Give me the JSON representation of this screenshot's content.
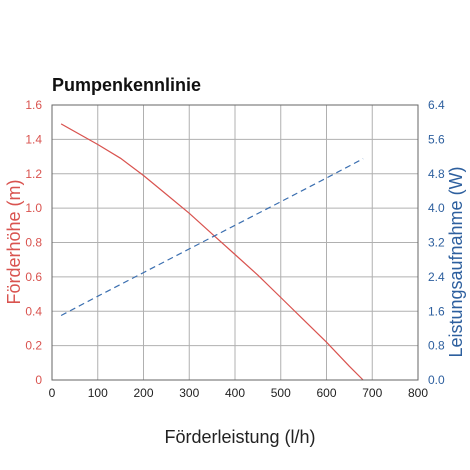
{
  "chart_data": {
    "type": "line",
    "title": "Pumpenkennlinie",
    "xlabel": "Förderleistung (l/h)",
    "ylabel_left": "Förderhöhe (m)",
    "ylabel_right": "Leistungsaufnahme (W)",
    "xlim": [
      0,
      800
    ],
    "ylim_left": [
      0,
      1.6
    ],
    "ylim_right": [
      0,
      6.4
    ],
    "x_ticks": [
      "0",
      "100",
      "200",
      "300",
      "400",
      "500",
      "600",
      "700",
      "800"
    ],
    "y_left_ticks": [
      "0",
      "0.2",
      "0.4",
      "0.6",
      "0.8",
      "1.0",
      "1.2",
      "1.4",
      "1.6"
    ],
    "y_right_ticks": [
      "0.0",
      "0.8",
      "1.6",
      "2.4",
      "3.2",
      "4.0",
      "4.8",
      "5.6",
      "6.4"
    ],
    "grid": true,
    "series": [
      {
        "axis": "left",
        "style": "solid",
        "color": "#d9534f",
        "x": [
          20,
          100,
          150,
          200,
          250,
          300,
          350,
          400,
          450,
          500,
          550,
          600,
          650,
          680
        ],
        "y": [
          1.49,
          1.37,
          1.29,
          1.19,
          1.08,
          0.97,
          0.85,
          0.73,
          0.61,
          0.48,
          0.35,
          0.22,
          0.08,
          0.0
        ]
      },
      {
        "axis": "right",
        "style": "dashed",
        "color": "#3b6fb0",
        "x": [
          20,
          100,
          200,
          300,
          400,
          500,
          600,
          680
        ],
        "y": [
          1.5,
          1.95,
          2.5,
          3.05,
          3.6,
          4.15,
          4.7,
          5.15
        ]
      }
    ],
    "colors": {
      "left_axis": "#d9534f",
      "right_axis": "#2d5f9e",
      "x_axis": "#222222",
      "grid": "#b0b0b0",
      "frame": "#666666"
    }
  }
}
